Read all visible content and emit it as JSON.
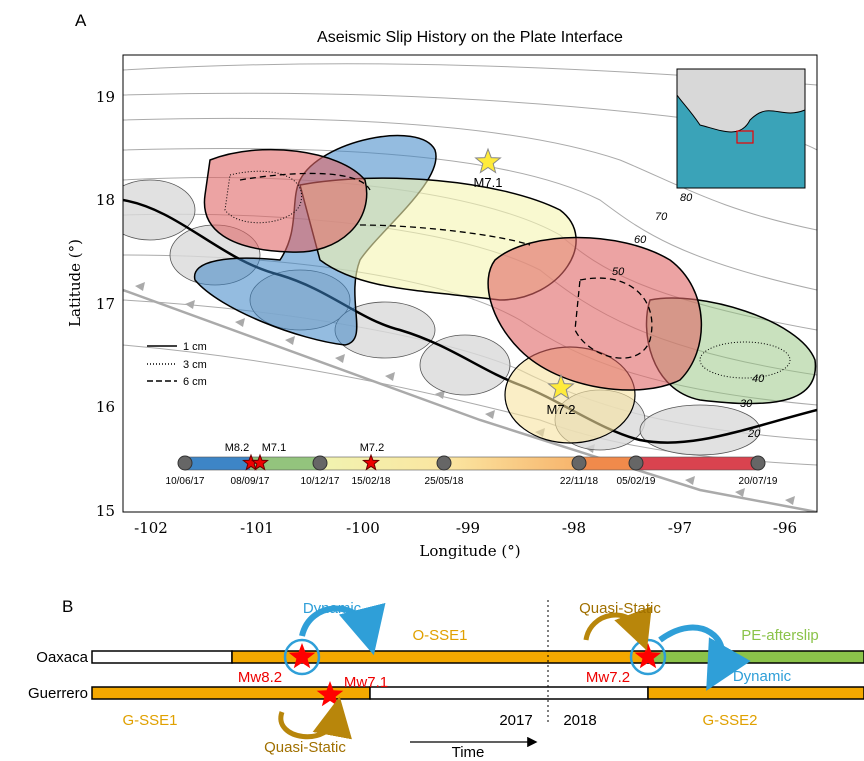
{
  "panel_a": {
    "label": "A",
    "title": "Aseismic Slip History on the Plate Interface",
    "x_axis": {
      "label": "Longitude (°)",
      "ticks": [
        "-102",
        "-101",
        "-100",
        "-99",
        "-98",
        "-97",
        "-96"
      ]
    },
    "y_axis": {
      "label": "Latitude (°)",
      "ticks": [
        "19",
        "18",
        "17",
        "16",
        "15"
      ]
    },
    "legend": [
      "1 cm",
      "3 cm",
      "6 cm"
    ],
    "contour_labels": [
      "80",
      "70",
      "60",
      "50",
      "40",
      "30",
      "20"
    ],
    "earthquakes": [
      "M7.1",
      "M7.2"
    ],
    "timeline": {
      "events": [
        "M8.2",
        "M7.1",
        "M7.2"
      ],
      "dates": [
        "10/06/17",
        "08/09/17",
        "10/12/17",
        "15/02/18",
        "25/05/18",
        "22/11/18",
        "05/02/19",
        "20/07/19"
      ]
    }
  },
  "panel_b": {
    "label": "B",
    "rows": [
      "Oaxaca",
      "Guerrero"
    ],
    "annotations": {
      "dynamic_1": "Dynamic",
      "o_sse1": "O-SSE1",
      "quasi_static_1": "Quasi-Static",
      "pe_afterslip": "PE-afterslip",
      "dynamic_2": "Dynamic",
      "mw82": "Mw8.2",
      "mw71": "Mw7.1",
      "mw72": "Mw7.2",
      "year_1": "2017",
      "year_2": "2018",
      "g_sse1": "G-SSE1",
      "g_sse2": "G-SSE2",
      "quasi_static_2": "Quasi-Static",
      "time": "Time"
    }
  }
}
